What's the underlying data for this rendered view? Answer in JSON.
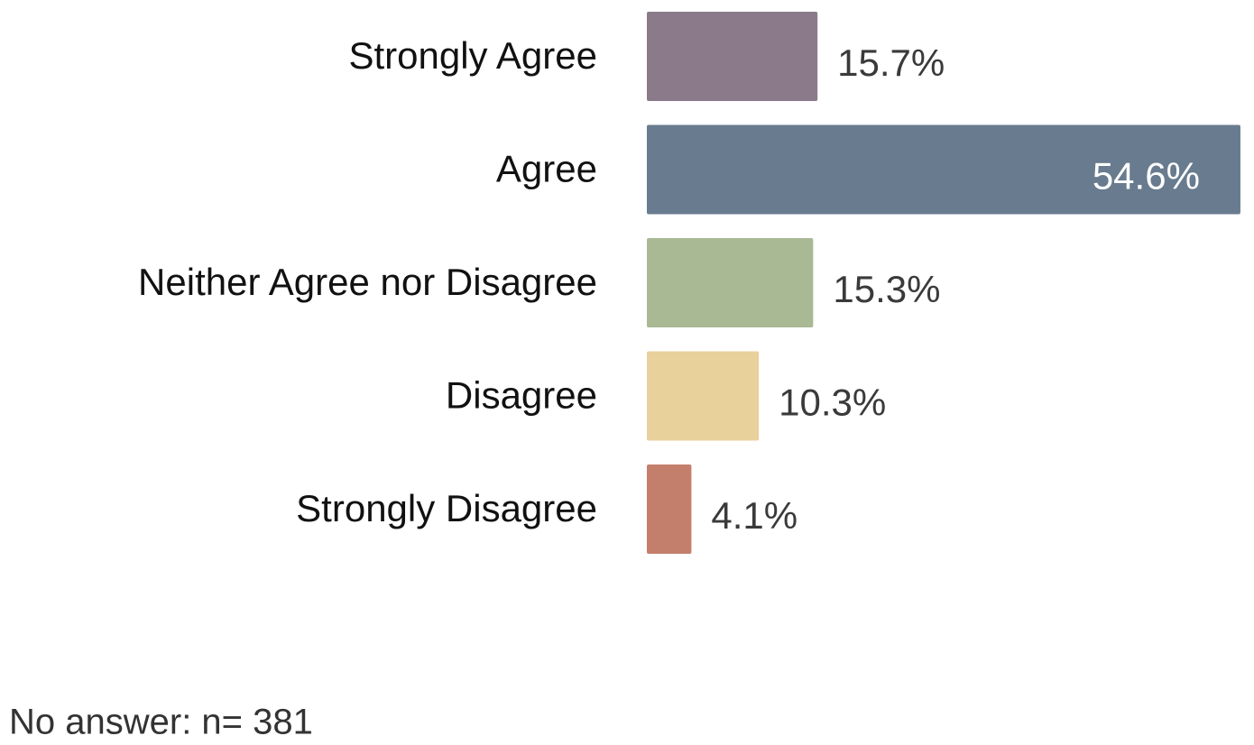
{
  "chart_data": {
    "type": "bar",
    "orientation": "horizontal",
    "categories": [
      "Strongly Agree",
      "Agree",
      "Neither Agree nor Disagree",
      "Disagree",
      "Strongly Disagree"
    ],
    "values": [
      15.7,
      54.6,
      15.3,
      10.3,
      4.1
    ],
    "value_labels": [
      "15.7%",
      "54.6%",
      "15.3%",
      "10.3%",
      "4.1%"
    ],
    "colors": [
      "#8b7b8a",
      "#687b8f",
      "#a9b994",
      "#e8d19a",
      "#c47f6c"
    ],
    "note": "No answer: n= 381"
  }
}
